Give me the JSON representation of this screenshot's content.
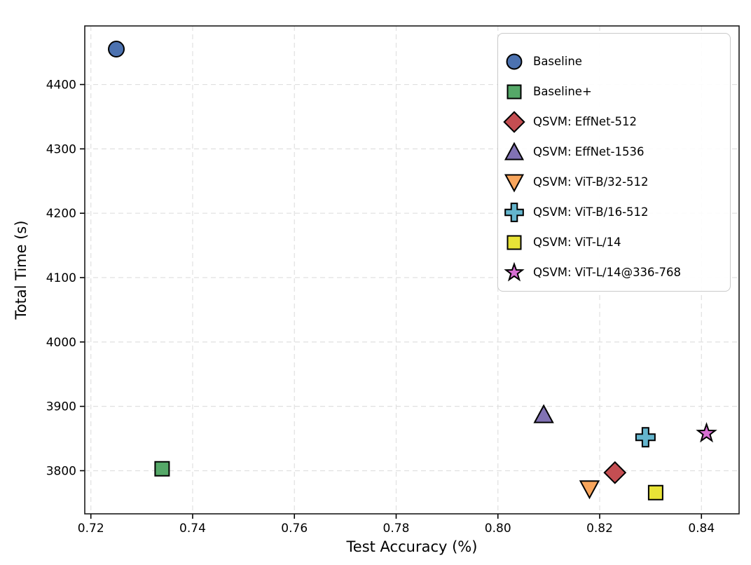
{
  "chart_data": {
    "type": "scatter",
    "title": "",
    "xlabel": "Test Accuracy (%)",
    "ylabel": "Total Time (s)",
    "xlim": [
      0.7188,
      0.8474
    ],
    "ylim": [
      3733,
      4491
    ],
    "x_ticks": [
      0.72,
      0.74,
      0.76,
      0.78,
      0.8,
      0.82,
      0.84
    ],
    "x_tick_labels": [
      "0.72",
      "0.74",
      "0.76",
      "0.78",
      "0.80",
      "0.82",
      "0.84"
    ],
    "y_ticks": [
      3800,
      3900,
      4000,
      4100,
      4200,
      4300,
      4400
    ],
    "y_tick_labels": [
      "3800",
      "3900",
      "4000",
      "4100",
      "4200",
      "4300",
      "4400"
    ],
    "grid": true,
    "grid_style": "dashed",
    "legend_position": "upper right",
    "marker_edge_color": "#000000",
    "series": [
      {
        "name": "Baseline",
        "marker": "circle",
        "color": "#4C72B0",
        "x": 0.725,
        "y": 4455
      },
      {
        "name": "Baseline+",
        "marker": "square",
        "color": "#55A868",
        "x": 0.734,
        "y": 3803
      },
      {
        "name": "QSVM: EffNet-512",
        "marker": "diamond",
        "color": "#C44E52",
        "x": 0.823,
        "y": 3797
      },
      {
        "name": "QSVM: EffNet-1536",
        "marker": "triangle-up",
        "color": "#8172B3",
        "x": 0.809,
        "y": 3887
      },
      {
        "name": "QSVM: ViT-B/32-512",
        "marker": "triangle-down",
        "color": "#F8A55C",
        "x": 0.818,
        "y": 3772
      },
      {
        "name": "QSVM: ViT-B/16-512",
        "marker": "plus",
        "color": "#64B5CD",
        "x": 0.829,
        "y": 3852
      },
      {
        "name": "QSVM: ViT-L/14",
        "marker": "square",
        "color": "#E8E337",
        "x": 0.831,
        "y": 3766
      },
      {
        "name": "QSVM: ViT-L/14@336-768",
        "marker": "star",
        "color": "#D76FD3",
        "x": 0.841,
        "y": 3858
      }
    ]
  }
}
